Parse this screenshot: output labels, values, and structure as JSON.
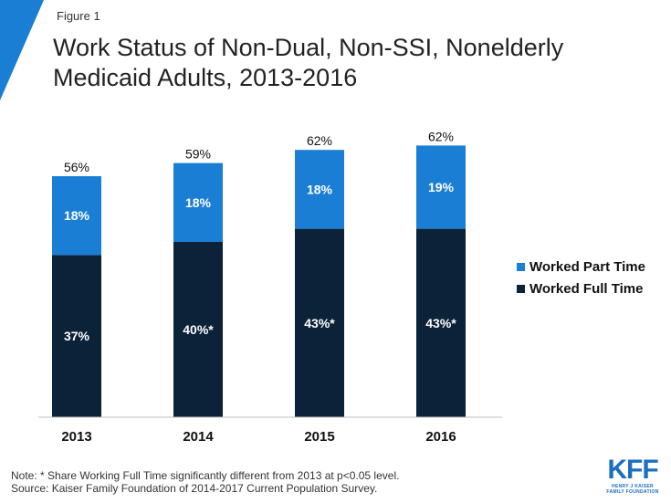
{
  "figure_label": "Figure 1",
  "title_line1": "Work Status of Non-Dual, Non-SSI, Nonelderly",
  "title_line2": "Medicaid Adults, 2013-2016",
  "note": "Note: * Share Working Full Time significantly different from 2013 at p<0.05 level.",
  "source": "Source: Kaiser Family Foundation of 2014-2017 Current Population Survey.",
  "logo": {
    "main": "KFF",
    "sub1": "HENRY J KAISER",
    "sub2": "FAMILY FOUNDATION"
  },
  "colors": {
    "part_time": "#1a7fd4",
    "full_time": "#0b2239",
    "accent": "#1a7fd4"
  },
  "chart_data": {
    "type": "bar",
    "stacked": true,
    "title": "Work Status of Non-Dual, Non-SSI, Nonelderly Medicaid Adults, 2013-2016",
    "categories": [
      "2013",
      "2014",
      "2015",
      "2016"
    ],
    "series": [
      {
        "name": "Worked Full Time",
        "values": [
          37,
          40,
          43,
          43
        ],
        "labels": [
          "37%",
          "40%*",
          "43%*",
          "43%*"
        ],
        "color": "#0b2239"
      },
      {
        "name": "Worked Part Time",
        "values": [
          18,
          18,
          18,
          19
        ],
        "labels": [
          "18%",
          "18%",
          "18%",
          "19%"
        ],
        "color": "#1a7fd4"
      }
    ],
    "totals": [
      "56%",
      "59%",
      "62%",
      "62%"
    ],
    "legend": [
      "Worked Part Time",
      "Worked Full Time"
    ],
    "legend_position": "right",
    "ylim": [
      0,
      62
    ],
    "xlabel": "",
    "ylabel": ""
  }
}
